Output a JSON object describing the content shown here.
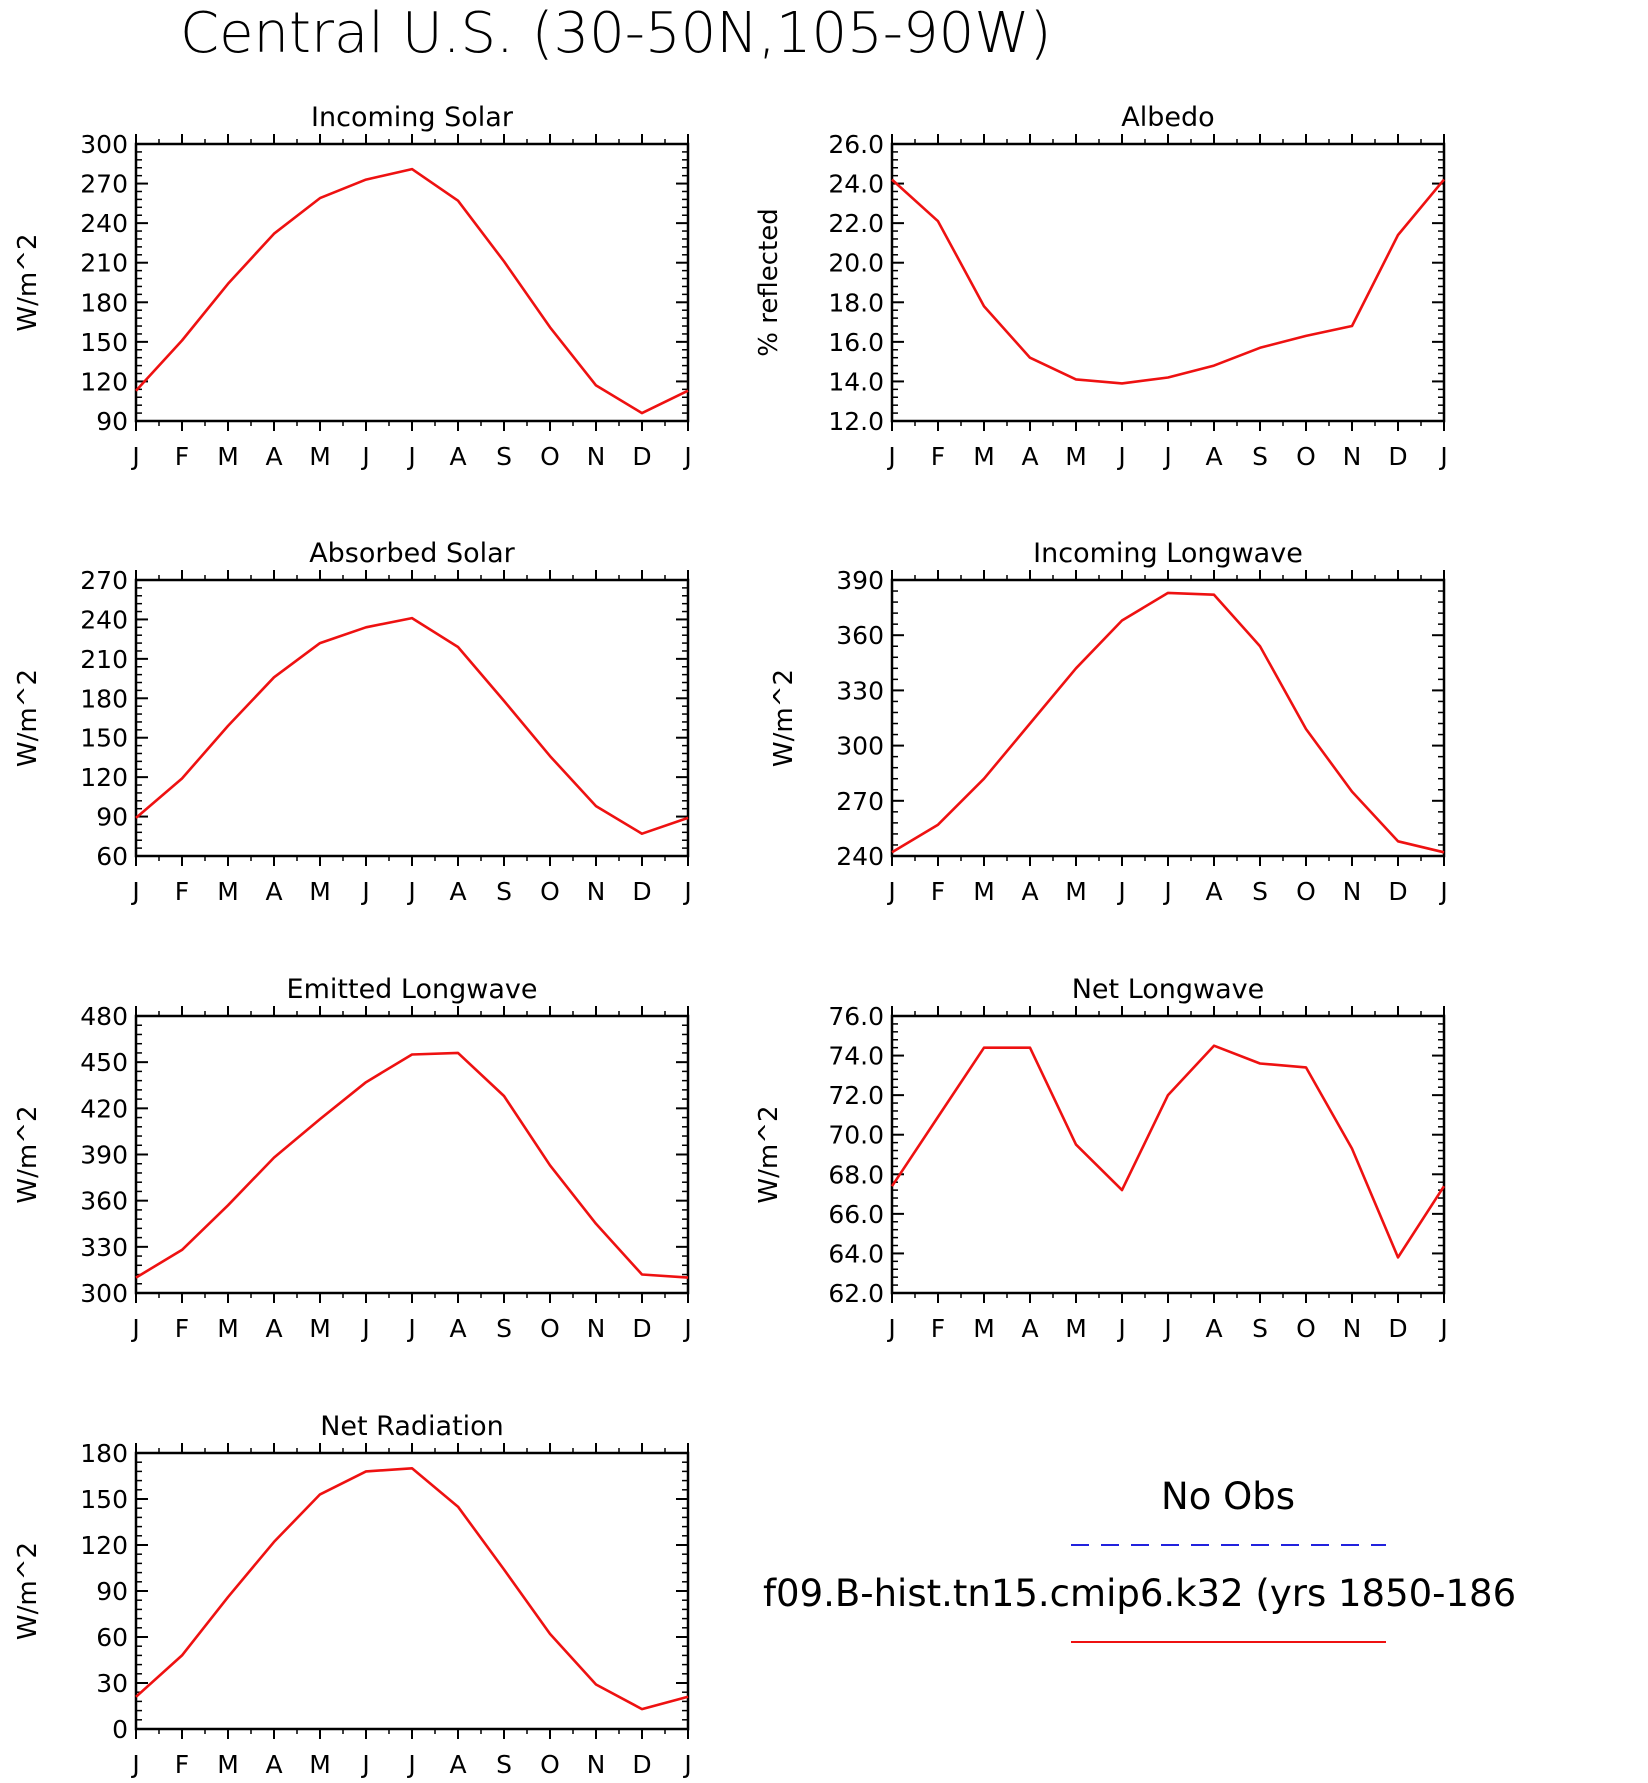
{
  "title": "Central U.S. (30-50N,105-90W)",
  "legend": {
    "entries": [
      {
        "label": "No Obs",
        "color": "#2222dd",
        "style": "dashed"
      },
      {
        "label": "f09.B-hist.tn15.cmip6.k32 (yrs 1850-186",
        "color": "#ee1111",
        "style": "solid"
      }
    ]
  },
  "chart_data": [
    {
      "type": "line",
      "title": "Incoming Solar",
      "ylabel": "W/m^2",
      "xlabel": "",
      "x": [
        "J",
        "F",
        "M",
        "A",
        "M",
        "J",
        "J",
        "A",
        "S",
        "O",
        "N",
        "D",
        "J"
      ],
      "ylim": [
        90,
        300
      ],
      "yticks": [
        "90",
        "120",
        "150",
        "180",
        "210",
        "240",
        "270",
        "300"
      ],
      "grid": false,
      "series": [
        {
          "color": "#ee1111",
          "values": [
            113,
            151,
            194,
            232,
            259,
            273,
            281,
            257,
            211,
            161,
            117,
            96,
            113
          ]
        }
      ]
    },
    {
      "type": "line",
      "title": "Albedo",
      "ylabel": "% reflected",
      "xlabel": "",
      "x": [
        "J",
        "F",
        "M",
        "A",
        "M",
        "J",
        "J",
        "A",
        "S",
        "O",
        "N",
        "D",
        "J"
      ],
      "ylim": [
        12.0,
        26.0
      ],
      "yticks": [
        "12.0",
        "14.0",
        "16.0",
        "18.0",
        "20.0",
        "22.0",
        "24.0",
        "26.0"
      ],
      "grid": false,
      "series": [
        {
          "color": "#ee1111",
          "values": [
            24.2,
            22.1,
            17.8,
            15.2,
            14.1,
            13.9,
            14.2,
            14.8,
            15.7,
            16.3,
            16.8,
            21.4,
            24.2
          ]
        }
      ]
    },
    {
      "type": "line",
      "title": "Absorbed Solar",
      "ylabel": "W/m^2",
      "xlabel": "",
      "x": [
        "J",
        "F",
        "M",
        "A",
        "M",
        "J",
        "J",
        "A",
        "S",
        "O",
        "N",
        "D",
        "J"
      ],
      "ylim": [
        60,
        270
      ],
      "yticks": [
        "60",
        "90",
        "120",
        "150",
        "180",
        "210",
        "240",
        "270"
      ],
      "grid": false,
      "series": [
        {
          "color": "#ee1111",
          "values": [
            89,
            119,
            159,
            196,
            222,
            234,
            241,
            219,
            178,
            136,
            98,
            77,
            89
          ]
        }
      ]
    },
    {
      "type": "line",
      "title": "Incoming Longwave",
      "ylabel": "W/m^2",
      "xlabel": "",
      "x": [
        "J",
        "F",
        "M",
        "A",
        "M",
        "J",
        "J",
        "A",
        "S",
        "O",
        "N",
        "D",
        "J"
      ],
      "ylim": [
        240,
        390
      ],
      "yticks": [
        "240",
        "270",
        "300",
        "330",
        "360",
        "390"
      ],
      "grid": false,
      "series": [
        {
          "color": "#ee1111",
          "values": [
            242,
            257,
            282,
            312,
            342,
            368,
            383,
            382,
            354,
            309,
            275,
            248,
            242
          ]
        }
      ]
    },
    {
      "type": "line",
      "title": "Emitted Longwave",
      "ylabel": "W/m^2",
      "xlabel": "",
      "x": [
        "J",
        "F",
        "M",
        "A",
        "M",
        "J",
        "J",
        "A",
        "S",
        "O",
        "N",
        "D",
        "J"
      ],
      "ylim": [
        300,
        480
      ],
      "yticks": [
        "300",
        "330",
        "360",
        "390",
        "420",
        "450",
        "480"
      ],
      "grid": false,
      "series": [
        {
          "color": "#ee1111",
          "values": [
            310,
            328,
            357,
            388,
            413,
            437,
            455,
            456,
            428,
            383,
            345,
            312,
            310
          ]
        }
      ]
    },
    {
      "type": "line",
      "title": "Net Longwave",
      "ylabel": "W/m^2",
      "xlabel": "",
      "x": [
        "J",
        "F",
        "M",
        "A",
        "M",
        "J",
        "J",
        "A",
        "S",
        "O",
        "N",
        "D",
        "J"
      ],
      "ylim": [
        62.0,
        76.0
      ],
      "yticks": [
        "62.0",
        "64.0",
        "66.0",
        "68.0",
        "70.0",
        "72.0",
        "74.0",
        "76.0"
      ],
      "grid": false,
      "series": [
        {
          "color": "#ee1111",
          "values": [
            67.4,
            70.9,
            74.4,
            74.4,
            69.5,
            67.2,
            72.0,
            74.5,
            73.6,
            73.4,
            69.3,
            63.8,
            67.4
          ]
        }
      ]
    },
    {
      "type": "line",
      "title": "Net Radiation",
      "ylabel": "W/m^2",
      "xlabel": "",
      "x": [
        "J",
        "F",
        "M",
        "A",
        "M",
        "J",
        "J",
        "A",
        "S",
        "O",
        "N",
        "D",
        "J"
      ],
      "ylim": [
        0,
        180
      ],
      "yticks": [
        "0",
        "30",
        "60",
        "90",
        "120",
        "150",
        "180"
      ],
      "grid": false,
      "series": [
        {
          "color": "#ee1111",
          "values": [
            21,
            48,
            86,
            122,
            153,
            168,
            170,
            145,
            104,
            62,
            29,
            13,
            21
          ]
        }
      ]
    }
  ]
}
